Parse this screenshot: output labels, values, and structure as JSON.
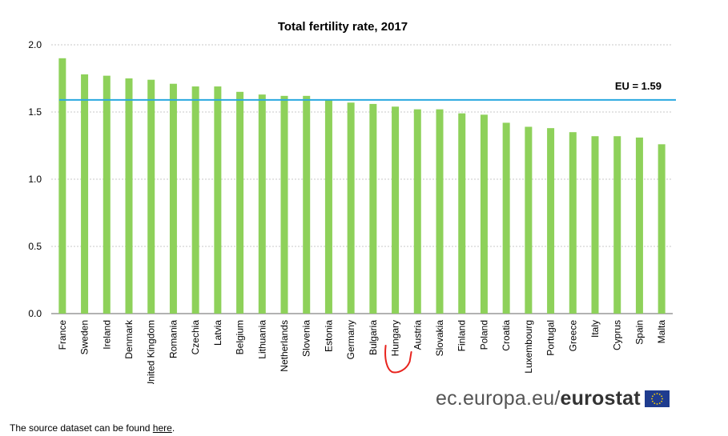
{
  "chart_data": {
    "type": "bar",
    "title": "Total fertility rate, 2017",
    "categories": [
      "France",
      "Sweden",
      "Ireland",
      "Denmark",
      "United Kingdom",
      "Romania",
      "Czechia",
      "Latvia",
      "Belgium",
      "Lithuania",
      "Netherlands",
      "Slovenia",
      "Estonia",
      "Germany",
      "Bulgaria",
      "Hungary",
      "Austria",
      "Slovakia",
      "Finland",
      "Poland",
      "Croatia",
      "Luxembourg",
      "Portugal",
      "Greece",
      "Italy",
      "Cyprus",
      "Spain",
      "Malta"
    ],
    "values": [
      1.9,
      1.78,
      1.77,
      1.75,
      1.74,
      1.71,
      1.69,
      1.69,
      1.65,
      1.63,
      1.62,
      1.62,
      1.59,
      1.57,
      1.56,
      1.54,
      1.52,
      1.52,
      1.49,
      1.48,
      1.42,
      1.39,
      1.38,
      1.35,
      1.32,
      1.32,
      1.31,
      1.26
    ],
    "ylim": [
      0,
      2.0
    ],
    "yticks": [
      "0.0",
      "0.5",
      "1.0",
      "1.5",
      "2.0"
    ],
    "reference_line": {
      "label": "EU = 1.59",
      "value": 1.59,
      "color": "#29a8e0"
    },
    "bar_color": "#8ed15a",
    "grid": true,
    "annotation": "hand-drawn red bracket under Hungary"
  },
  "logo": {
    "prefix": "ec.europa.eu/",
    "brand": "eurostat"
  },
  "source_note": {
    "text": "The source dataset can be found ",
    "link": "here",
    "suffix": "."
  }
}
